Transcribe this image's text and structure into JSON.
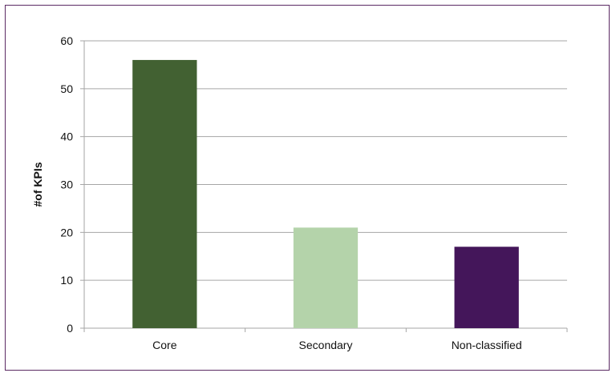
{
  "chart_data": {
    "type": "bar",
    "title": "",
    "xlabel": "",
    "ylabel": "#of KPIs",
    "categories": [
      "Core",
      "Secondary",
      "Non-classified"
    ],
    "values": [
      56,
      21,
      17
    ],
    "ylim": [
      0,
      60
    ],
    "yticks": [
      0,
      10,
      20,
      30,
      40,
      50,
      60
    ],
    "grid": true,
    "legend": "none",
    "colors": [
      "#426132",
      "#b4d3aa",
      "#44165a"
    ],
    "frame_color": "#5b2a63",
    "grid_color": "#a6a6a6"
  }
}
